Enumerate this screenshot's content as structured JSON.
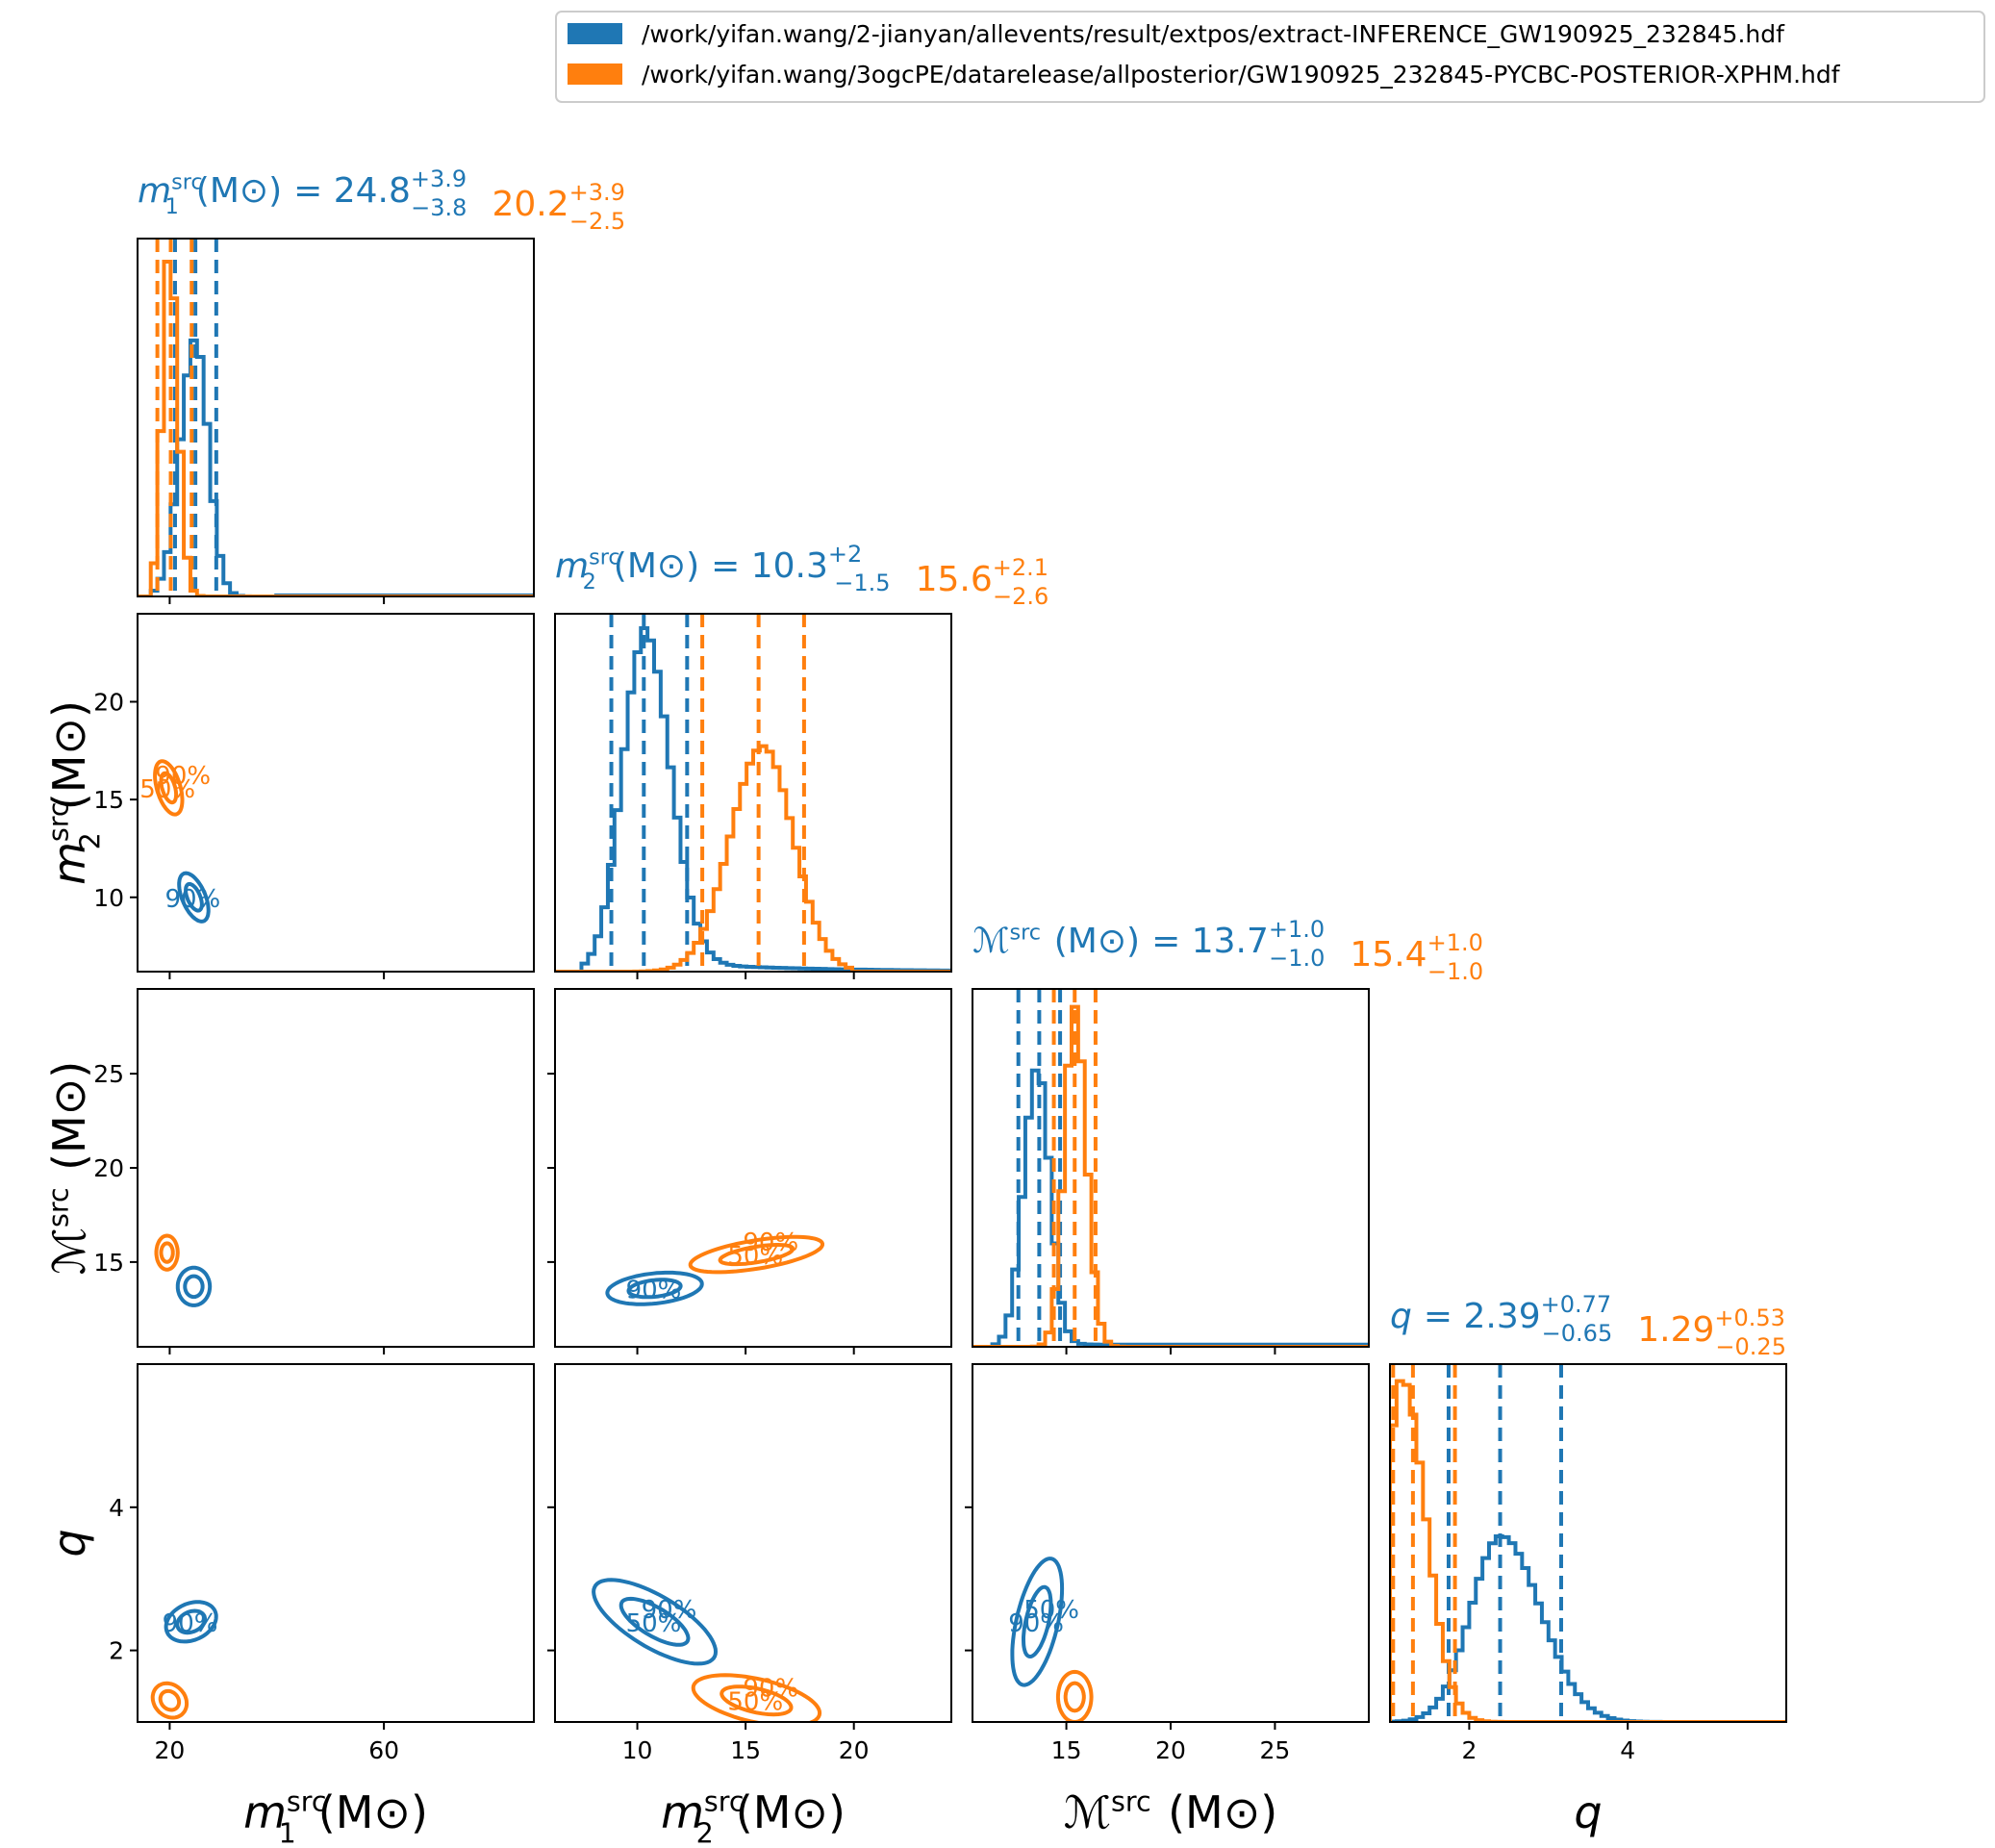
{
  "legend": {
    "entries": [
      {
        "label": "/work/yifan.wang/2-jianyan/allevents/result/extpos/extract-INFERENCE_GW190925_232845.hdf",
        "color": "#1f77b4"
      },
      {
        "label": "/work/yifan.wang/3ogcPE/datarelease/allposterior/GW190925_232845-PYCBC-POSTERIOR-XPHM.hdf",
        "color": "#ff7f0e"
      }
    ]
  },
  "params": [
    {
      "key": "m1",
      "base": "m",
      "sub": "1",
      "sup": "src",
      "unit": "(M⊙)",
      "axis_label": "m1src (M⊙)",
      "range": [
        14,
        88
      ],
      "ticks": [
        20,
        60
      ],
      "yticks": [],
      "title": {
        "prefix": "=",
        "values": [
          {
            "median": "24.8",
            "plus": "+3.9",
            "minus": "−3.8",
            "color": "#1f77b4"
          },
          {
            "median": "20.2",
            "plus": "+3.9",
            "minus": "−2.5",
            "color": "#ff7f0e"
          }
        ]
      }
    },
    {
      "key": "m2",
      "base": "m",
      "sub": "2",
      "sup": "src",
      "unit": "(M⊙)",
      "axis_label": "m2src (M⊙)",
      "range": [
        6.2,
        24.5
      ],
      "ticks": [
        10,
        15,
        20
      ],
      "yticks": [
        10,
        15,
        20
      ],
      "title": {
        "prefix": "=",
        "values": [
          {
            "median": "10.3",
            "plus": "+2",
            "minus": "−1.5",
            "color": "#1f77b4"
          },
          {
            "median": "15.6",
            "plus": "+2.1",
            "minus": "−2.6",
            "color": "#ff7f0e"
          }
        ]
      }
    },
    {
      "key": "mc",
      "base": "ℳ",
      "sub": "",
      "sup": "src",
      "unit": "(M⊙)",
      "axis_label": "ℳsrc (M⊙)",
      "range": [
        10.5,
        29.5
      ],
      "ticks": [
        15,
        20,
        25
      ],
      "yticks": [
        15,
        20,
        25
      ],
      "title": {
        "prefix": "=",
        "values": [
          {
            "median": "13.7",
            "plus": "+1.0",
            "minus": "−1.0",
            "color": "#1f77b4"
          },
          {
            "median": "15.4",
            "plus": "+1.0",
            "minus": "−1.0",
            "color": "#ff7f0e"
          }
        ]
      }
    },
    {
      "key": "q",
      "base": "q",
      "sub": "",
      "sup": "",
      "unit": "",
      "axis_label": "q",
      "range": [
        1.0,
        6.0
      ],
      "ticks": [
        2,
        4
      ],
      "yticks": [
        2,
        4
      ],
      "title": {
        "prefix": "=",
        "values": [
          {
            "median": "2.39",
            "plus": "+0.77",
            "minus": "−0.65",
            "color": "#1f77b4"
          },
          {
            "median": "1.29",
            "plus": "+0.53",
            "minus": "−0.25",
            "color": "#ff7f0e"
          }
        ]
      }
    }
  ],
  "chart_data": {
    "type": "corner",
    "contour_labels": [
      "50%",
      "90%"
    ],
    "series": [
      {
        "name": "/work/yifan.wang/2-jianyan/allevents/result/extpos/extract-INFERENCE_GW190925_232845.hdf",
        "color": "#1f77b4",
        "quantiles": {
          "m1": [
            21.0,
            24.8,
            28.7
          ],
          "m2": [
            8.8,
            10.3,
            12.3
          ],
          "mc": [
            12.7,
            13.7,
            14.7
          ],
          "q": [
            1.74,
            2.39,
            3.16
          ]
        },
        "hist": {
          "m1": {
            "edges": [
              17,
              40
            ],
            "peak": 24.8,
            "sigma_lo": 2.8,
            "sigma_hi": 2.4,
            "amp": 0.72
          },
          "m2": {
            "edges": [
              7.5,
              24.5
            ],
            "peak": 10.3,
            "sigma_lo": 1.0,
            "sigma_hi": 1.2,
            "amp": 0.93,
            "tail": 0.03
          },
          "mc": {
            "edges": [
              11.5,
              29.5
            ],
            "peak": 13.6,
            "sigma_lo": 0.65,
            "sigma_hi": 0.6,
            "amp": 0.78,
            "tail": 0.01
          },
          "q": {
            "edges": [
              1.0,
              6.0
            ],
            "peak": 2.4,
            "sigma_lo": 0.38,
            "sigma_hi": 0.5,
            "amp": 0.52
          }
        },
        "contours": {
          "m2|m1": {
            "cx": 24.5,
            "cy": 10.0,
            "sx": 2.2,
            "sy": 1.3,
            "rot": 0.35,
            "labels": [
              "90%"
            ]
          },
          "mc|m1": {
            "cx": 24.5,
            "cy": 13.7,
            "sx": 3.0,
            "sy": 1.0,
            "rot": 0.0,
            "labels": []
          },
          "mc|m2": {
            "cx": 10.8,
            "cy": 13.6,
            "sx": 2.2,
            "sy": 0.8,
            "rot": 0.12,
            "labels": [
              "90%"
            ]
          },
          "q|m1": {
            "cx": 24.0,
            "cy": 2.4,
            "sx": 5.0,
            "sy": 0.25,
            "rot": 0.55,
            "labels": [
              "90%"
            ]
          },
          "q|m2": {
            "cx": 10.8,
            "cy": 2.4,
            "sx": 3.3,
            "sy": 0.35,
            "rot": -0.6,
            "labels": [
              "50%",
              "90%"
            ]
          },
          "q|mc": {
            "cx": 13.6,
            "cy": 2.4,
            "sx": 1.0,
            "sy": 0.9,
            "rot": -0.2,
            "labels": [
              "90%",
              "50%"
            ]
          }
        }
      },
      {
        "name": "/work/yifan.wang/3ogcPE/datarelease/allposterior/GW190925_232845-PYCBC-POSTERIOR-XPHM.hdf",
        "color": "#ff7f0e",
        "quantiles": {
          "m1": [
            17.7,
            20.2,
            24.1
          ],
          "m2": [
            13.0,
            15.6,
            17.7
          ],
          "mc": [
            14.4,
            15.4,
            16.4
          ],
          "q": [
            1.04,
            1.29,
            1.82
          ]
        },
        "hist": {
          "m1": {
            "edges": [
              16,
              30
            ],
            "peak": 19.9,
            "sigma_lo": 1.3,
            "sigma_hi": 1.6,
            "amp": 0.97
          },
          "m2": {
            "edges": [
              8.0,
              20.0
            ],
            "peak": 15.8,
            "sigma_lo": 1.5,
            "sigma_hi": 1.4,
            "amp": 0.63
          },
          "mc": {
            "edges": [
              13.0,
              18.5
            ],
            "peak": 15.4,
            "sigma_lo": 0.5,
            "sigma_hi": 0.55,
            "amp": 0.95
          },
          "q": {
            "edges": [
              1.0,
              4.5
            ],
            "peak": 1.15,
            "sigma_lo": 0.2,
            "sigma_hi": 0.3,
            "amp": 0.96
          }
        },
        "contours": {
          "m2|m1": {
            "cx": 19.8,
            "cy": 15.6,
            "sx": 2.2,
            "sy": 1.4,
            "rot": 0.25,
            "labels": [
              "50%",
              "90%"
            ]
          },
          "mc|m1": {
            "cx": 19.5,
            "cy": 15.5,
            "sx": 2.0,
            "sy": 0.9,
            "rot": 0.0,
            "labels": []
          },
          "mc|m2": {
            "cx": 15.5,
            "cy": 15.4,
            "sx": 3.1,
            "sy": 0.75,
            "rot": 0.18,
            "labels": [
              "50%",
              "90%"
            ]
          },
          "q|m1": {
            "cx": 20.0,
            "cy": 1.3,
            "sx": 3.0,
            "sy": 0.25,
            "rot": 0.5,
            "labels": []
          },
          "q|m2": {
            "cx": 15.5,
            "cy": 1.3,
            "sx": 3.0,
            "sy": 0.3,
            "rot": -0.25,
            "labels": [
              "50%",
              "90%"
            ]
          },
          "q|mc": {
            "cx": 15.4,
            "cy": 1.35,
            "sx": 0.8,
            "sy": 0.35,
            "rot": 0.0,
            "labels": []
          }
        }
      }
    ]
  }
}
